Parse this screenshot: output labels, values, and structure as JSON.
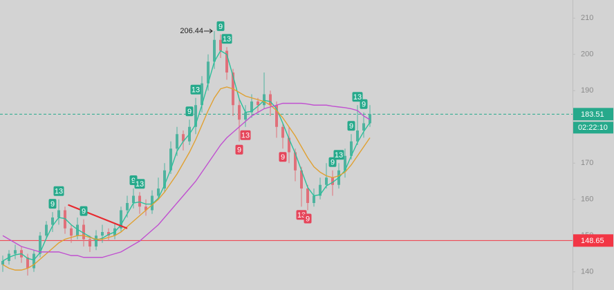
{
  "chart_data": {
    "type": "candlestick",
    "ylim": [
      135,
      215
    ],
    "yticks": [
      140,
      150,
      160,
      170,
      180,
      190,
      200,
      210
    ],
    "up_color": "#4fb39f",
    "down_color": "#e0707a",
    "candles": [
      [
        142,
        144.5,
        140,
        143
      ],
      [
        143,
        146,
        142,
        145
      ],
      [
        145,
        147.5,
        143.5,
        146
      ],
      [
        146,
        147,
        142.5,
        144
      ],
      [
        144,
        145,
        139,
        141
      ],
      [
        141,
        146,
        140,
        145
      ],
      [
        145,
        151,
        144,
        150
      ],
      [
        150,
        154,
        149,
        153
      ],
      [
        153,
        156.5,
        151,
        155
      ],
      [
        155,
        160,
        153,
        157
      ],
      [
        157,
        158,
        150.5,
        152
      ],
      [
        152,
        153,
        148,
        150
      ],
      [
        150,
        155,
        149,
        153
      ],
      [
        153,
        154.5,
        147,
        149
      ],
      [
        149,
        150,
        145.5,
        147
      ],
      [
        147,
        151.5,
        146,
        150
      ],
      [
        150,
        153,
        148,
        151
      ],
      [
        151,
        152,
        148.5,
        150
      ],
      [
        150,
        153.5,
        149,
        152
      ],
      [
        152,
        158,
        151,
        157
      ],
      [
        157,
        161,
        155,
        159
      ],
      [
        159,
        163,
        157.5,
        161
      ],
      [
        161,
        162,
        156,
        158
      ],
      [
        158,
        160,
        155.5,
        157
      ],
      [
        157,
        162.5,
        156,
        161
      ],
      [
        161,
        166,
        160,
        163
      ],
      [
        163,
        170,
        162,
        168
      ],
      [
        168,
        176,
        167,
        174
      ],
      [
        174,
        180,
        172,
        178
      ],
      [
        178,
        179,
        173.5,
        176
      ],
      [
        176,
        182,
        175,
        180
      ],
      [
        180,
        188,
        178,
        186
      ],
      [
        186,
        194,
        184,
        192
      ],
      [
        192,
        200,
        190,
        198
      ],
      [
        198,
        206.44,
        196,
        204
      ],
      [
        204,
        205.5,
        199,
        201
      ],
      [
        201,
        202,
        193,
        195
      ],
      [
        195,
        196,
        183,
        186
      ],
      [
        186,
        188,
        176,
        182
      ],
      [
        182,
        186,
        180,
        184
      ],
      [
        184,
        189,
        182.5,
        187
      ],
      [
        187,
        188,
        184,
        186
      ],
      [
        186,
        195,
        185,
        189
      ],
      [
        189,
        190,
        183,
        186
      ],
      [
        186,
        187,
        177,
        180
      ],
      [
        180,
        181,
        174,
        177
      ],
      [
        177,
        180,
        170,
        173
      ],
      [
        173,
        174,
        165,
        168
      ],
      [
        168,
        169,
        158,
        163
      ],
      [
        163,
        164,
        157,
        159
      ],
      [
        159,
        163,
        158,
        161
      ],
      [
        161,
        166,
        160,
        164
      ],
      [
        164,
        170,
        163,
        166
      ],
      [
        166,
        168,
        161,
        164
      ],
      [
        164,
        170,
        163,
        168
      ],
      [
        168,
        174,
        166,
        172
      ],
      [
        172,
        178,
        171,
        176
      ],
      [
        176,
        186,
        175,
        179
      ],
      [
        179,
        184,
        177,
        181
      ],
      [
        181,
        186,
        180,
        183.51
      ]
    ],
    "lines": [
      {
        "color": "#2bbf9a",
        "values": [
          143,
          144,
          144.7,
          145,
          143.7,
          143.3,
          145.3,
          149.3,
          152.7,
          155,
          154.7,
          153,
          151.7,
          150.7,
          149.7,
          148.7,
          149.3,
          150.3,
          151,
          153,
          156,
          159,
          159.3,
          158.7,
          158.7,
          160.3,
          164,
          168.3,
          173.3,
          176,
          178,
          180.7,
          186,
          192,
          198,
          201,
          200,
          194,
          187.7,
          184,
          184.3,
          185.7,
          187.3,
          187,
          185,
          181,
          176.7,
          172.7,
          168,
          163.3,
          161,
          161.3,
          163.7,
          164.7,
          166,
          168,
          172,
          175.7,
          178.7,
          181.2
        ]
      },
      {
        "color": "#e0a030",
        "values": [
          142,
          141,
          140.5,
          140.5,
          141,
          142,
          143.5,
          145,
          146.5,
          148,
          149,
          149.5,
          150,
          150,
          149.5,
          149,
          149,
          149.5,
          150,
          151,
          152.5,
          154,
          155.5,
          157,
          158.5,
          160,
          162,
          164.5,
          167,
          170,
          173,
          176.5,
          180.5,
          184.5,
          188,
          190.5,
          191,
          190.5,
          189.5,
          188.5,
          188,
          187.5,
          187,
          186,
          184.5,
          182.5,
          180,
          177.5,
          174.5,
          171.5,
          169,
          167.5,
          166.5,
          166,
          166.5,
          167.5,
          169.5,
          172,
          174.5,
          177
        ]
      },
      {
        "color": "#c050d0",
        "values": [
          150,
          149,
          148,
          147,
          146.5,
          146,
          145.5,
          145.5,
          145.5,
          145.5,
          145,
          144.5,
          144.5,
          144,
          144,
          144,
          144,
          144.5,
          145,
          145.5,
          146.5,
          147.5,
          148.5,
          150,
          151.5,
          153,
          155,
          157,
          159,
          161,
          163,
          165,
          167.5,
          170,
          172.5,
          175,
          177,
          178.5,
          180,
          181.5,
          183,
          184,
          185,
          185.5,
          186,
          186.5,
          186.5,
          186.5,
          186.5,
          186.3,
          186,
          186,
          186,
          185.7,
          185.5,
          185.3,
          185,
          184.5,
          183,
          182
        ]
      }
    ],
    "signals": [
      {
        "label": "9",
        "index": 8,
        "color": "#26a98b"
      },
      {
        "label": "13",
        "index": 9,
        "color": "#26a98b"
      },
      {
        "label": "9",
        "index": 13,
        "color": "#26a98b"
      },
      {
        "label": "9",
        "index": 21,
        "color": "#26a98b"
      },
      {
        "label": "13",
        "index": 22,
        "color": "#26a98b"
      },
      {
        "label": "9",
        "index": 30,
        "color": "#26a98b"
      },
      {
        "label": "13",
        "index": 31,
        "color": "#26a98b"
      },
      {
        "label": "9",
        "index": 35,
        "color": "#26a98b"
      },
      {
        "label": "13",
        "index": 36,
        "color": "#26a98b"
      },
      {
        "label": "9",
        "index": 38,
        "color": "#e5455a"
      },
      {
        "label": "13",
        "index": 39,
        "color": "#e5455a"
      },
      {
        "label": "9",
        "index": 45,
        "color": "#e5455a"
      },
      {
        "label": "13",
        "index": 48,
        "color": "#e5455a"
      },
      {
        "label": "9",
        "index": 49,
        "color": "#e5455a"
      },
      {
        "label": "9",
        "index": 53,
        "color": "#26a98b"
      },
      {
        "label": "13",
        "index": 54,
        "color": "#26a98b"
      },
      {
        "label": "9",
        "index": 56,
        "color": "#26a98b"
      },
      {
        "label": "13",
        "index": 57,
        "color": "#26a98b"
      },
      {
        "label": "9",
        "index": 58,
        "color": "#26a98b"
      }
    ],
    "trend_line": {
      "color": "#e8282e",
      "x": [
        10.5,
        20
      ],
      "values": [
        158.5,
        152
      ]
    },
    "high_label": {
      "value": 206.44,
      "index": 34
    },
    "price_lines": [
      {
        "value": 183.51,
        "color": "#26a98b",
        "dashed": true
      },
      {
        "value": 148.65,
        "color": "#f23645",
        "dashed": false
      }
    ],
    "countdown": "02:22:10"
  }
}
